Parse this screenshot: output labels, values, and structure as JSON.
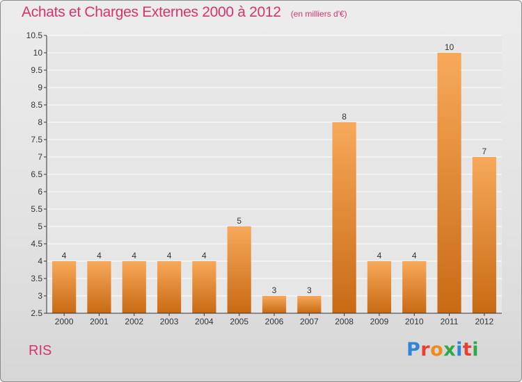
{
  "title": "Achats et Charges Externes 2000 à 2012",
  "subtitle": "(en milliers d'€)",
  "place": "RIS",
  "brand": {
    "text": "Proxiti",
    "letter_colors": [
      "#2f86d8",
      "#e8402e",
      "#f08a1c",
      "#2fa84a",
      "#2f86d8",
      "#e8402e",
      "#2fa84a"
    ]
  },
  "colors": {
    "title": "#d6336f",
    "bar_light": "#f7a95a",
    "bar_dark": "#c86a14",
    "grid": "#ffffff",
    "axis": "#333333",
    "plot_bg": "#e6e6e6"
  },
  "chart_data": {
    "type": "bar",
    "categories": [
      "2000",
      "2001",
      "2002",
      "2003",
      "2004",
      "2005",
      "2006",
      "2007",
      "2008",
      "2009",
      "2010",
      "2011",
      "2012"
    ],
    "values": [
      4,
      4,
      4,
      4,
      4,
      5,
      3,
      3,
      8,
      4,
      4,
      10,
      7
    ],
    "data_labels": [
      "4",
      "4",
      "4",
      "4",
      "4",
      "5",
      "3",
      "3",
      "8",
      "4",
      "4",
      "10",
      "7"
    ],
    "y_ticks": [
      "2.5",
      "3",
      "3.5",
      "4",
      "4.5",
      "5",
      "5.5",
      "6",
      "6.5",
      "7",
      "7.5",
      "8",
      "8.5",
      "9",
      "9.5",
      "10",
      "10.5"
    ],
    "ylim": [
      2.5,
      10.5
    ],
    "ytick_step": 0.5,
    "grid": true,
    "xlabel": "",
    "ylabel": ""
  }
}
